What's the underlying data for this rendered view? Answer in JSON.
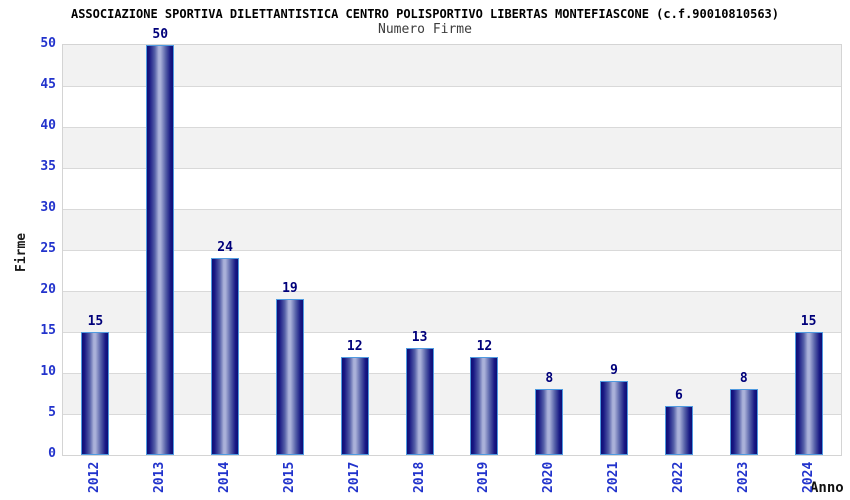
{
  "chart_data": {
    "type": "bar",
    "title": "ASSOCIAZIONE SPORTIVA DILETTANTISTICA CENTRO POLISPORTIVO LIBERTAS MONTEFIASCONE (c.f.90010810563)",
    "subtitle": "Numero Firme",
    "xlabel": "Anno",
    "ylabel": "Firme",
    "categories": [
      "2012",
      "2013",
      "2014",
      "2015",
      "2017",
      "2018",
      "2019",
      "2020",
      "2021",
      "2022",
      "2023",
      "2024"
    ],
    "values": [
      15,
      50,
      24,
      19,
      12,
      13,
      12,
      8,
      9,
      6,
      8,
      15
    ],
    "ylim": [
      0,
      50
    ],
    "ytick_step": 5,
    "grid": "horizontal bands with gridlines every 5",
    "legend": "none",
    "colors": {
      "tick_label_blue": "#2233cc",
      "value_label_navy": "#00007a",
      "bar_edge_dark": "#0e0e76",
      "bar_dark": "#191984",
      "bar_side": "#5560a8",
      "bar_center_light": "#aab1d9",
      "bar_border_lightblue": "#4f9ae0",
      "band_gray": "#f2f2f2",
      "band_white": "#ffffff",
      "grid_line": "#d9d9d9",
      "plot_border": "#d4d4d4",
      "title_color": "#000000",
      "subtitle_color": "#3c3c3c",
      "axis_title_color": "#1a1a1a"
    }
  }
}
